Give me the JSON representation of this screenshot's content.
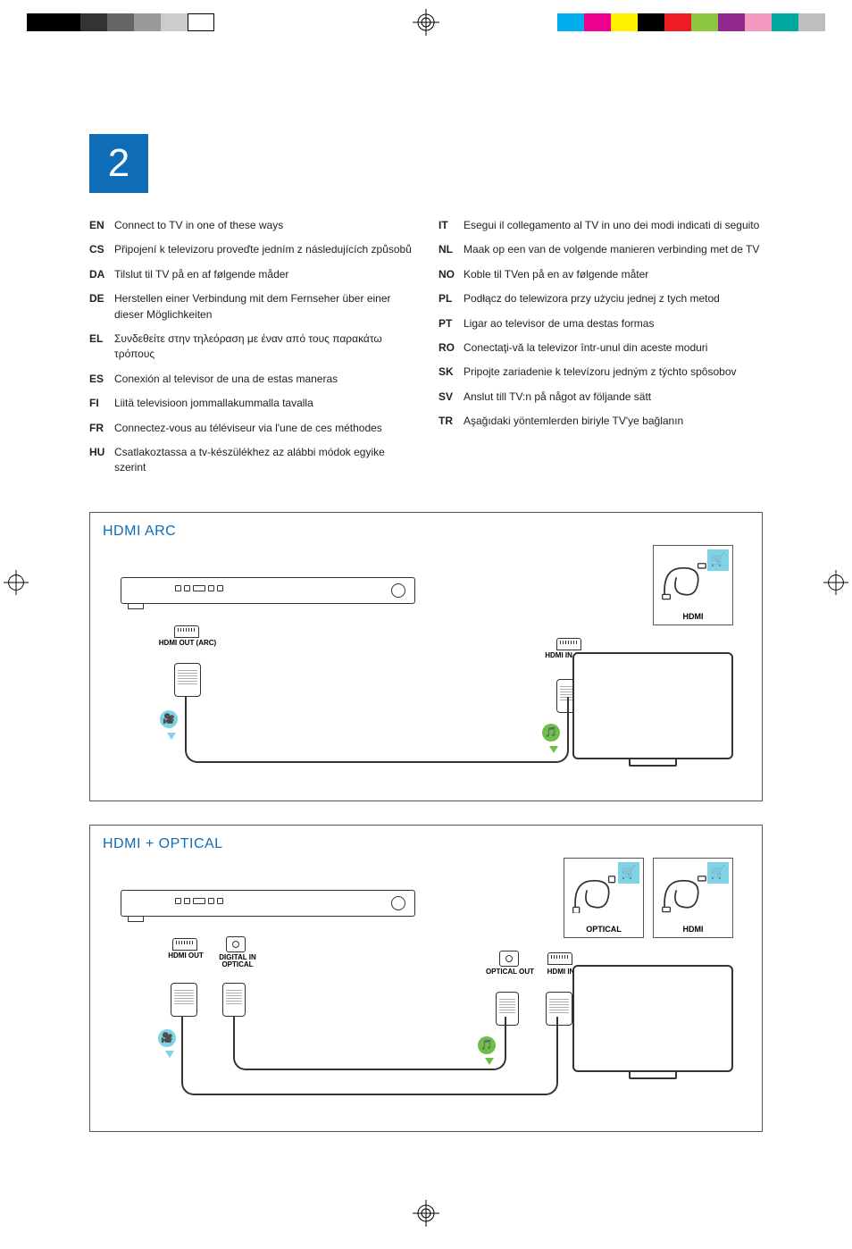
{
  "colors": {
    "accent_blue": "#0f6db8",
    "light_cyan": "#7fd3e6",
    "green": "#6fbf44",
    "text": "#222222",
    "border": "#555555",
    "cyan": "#00aeef",
    "magenta": "#ec008c",
    "yellow": "#fff200",
    "red": "#ed1c24",
    "lime": "#8dc63f",
    "purple": "#92278f",
    "teal": "#00a99d",
    "pink": "#f49ac1",
    "grey": "#bcbec0"
  },
  "print_marks": {
    "bw_swatches": [
      "#000000",
      "#000000",
      "#333333",
      "#666666",
      "#999999",
      "#cccccc",
      "#ffffff"
    ],
    "color_swatches": [
      "#00aeef",
      "#ec008c",
      "#fff200",
      "#000000",
      "#ed1c24",
      "#8dc63f",
      "#92278f",
      "#f49ac1",
      "#00a99d",
      "#bcbec0"
    ]
  },
  "section_number": "2",
  "languages_left": [
    {
      "code": "EN",
      "text": "Connect to TV in one of these ways"
    },
    {
      "code": "CS",
      "text": "Připojení k televizoru proveďte jedním z následujících způsobů"
    },
    {
      "code": "DA",
      "text": "Tilslut til TV på en af følgende måder"
    },
    {
      "code": "DE",
      "text": "Herstellen einer Verbindung mit dem Fernseher über einer dieser Möglichkeiten"
    },
    {
      "code": "EL",
      "text": "Συνδεθείτε στην τηλεόραση με έναν από τους παρακάτω τρόπους"
    },
    {
      "code": "ES",
      "text": "Conexión al televisor de una de estas maneras"
    },
    {
      "code": "FI",
      "text": "Liitä televisioon jommallakummalla tavalla"
    },
    {
      "code": "FR",
      "text": "Connectez-vous au téléviseur via l'une de ces méthodes"
    },
    {
      "code": "HU",
      "text": "Csatlakoztassa a tv-készülékhez az alábbi módok egyike szerint"
    }
  ],
  "languages_right": [
    {
      "code": "IT",
      "text": "Esegui il collegamento al TV in uno dei modi indicati di seguito"
    },
    {
      "code": "NL",
      "text": "Maak op een van de volgende manieren verbinding met de TV"
    },
    {
      "code": "NO",
      "text": "Koble til TVen på en av følgende måter"
    },
    {
      "code": "PL",
      "text": "Podłącz do telewizora przy użyciu jednej z tych metod"
    },
    {
      "code": "PT",
      "text": "Ligar ao televisor de uma destas formas"
    },
    {
      "code": "RO",
      "text": "Conectaţi-vă la televizor într-unul din aceste moduri"
    },
    {
      "code": "SK",
      "text": "Pripojte zariadenie k televízoru jedným z týchto spôsobov"
    },
    {
      "code": "SV",
      "text": "Anslut till TV:n på något av följande sätt"
    },
    {
      "code": "TR",
      "text": "Aşağıdaki yöntemlerden biriyle TV'ye bağlanın"
    }
  ],
  "diagram1": {
    "title": "HDMI ARC",
    "player_port": "HDMI OUT (ARC)",
    "tv_port": "HDMI IN (ARC)",
    "cable_box": {
      "label": "HDMI"
    },
    "video_icon": "🎥",
    "audio_icon": "🎵"
  },
  "diagram2": {
    "title": "HDMI + OPTICAL",
    "player_port1": "HDMI OUT",
    "player_port2_line1": "DIGITAL IN",
    "player_port2_line2": "OPTICAL",
    "tv_port1": "OPTICAL OUT",
    "tv_port2": "HDMI IN",
    "cable_box1": {
      "label": "OPTICAL"
    },
    "cable_box2": {
      "label": "HDMI"
    },
    "video_icon": "🎥",
    "audio_icon": "🎵"
  },
  "cart_glyph": "🛒"
}
